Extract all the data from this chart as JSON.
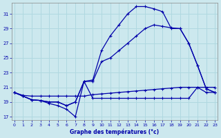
{
  "title": "Graphe des températures (°c)",
  "bg_color": "#cce8ee",
  "line_color": "#0000aa",
  "grid_color": "#b0d8e0",
  "xlim": [
    -0.3,
    23.3
  ],
  "ylim": [
    16.5,
    32.5
  ],
  "yticks": [
    17,
    19,
    21,
    23,
    25,
    27,
    29,
    31
  ],
  "xticks": [
    0,
    1,
    2,
    3,
    4,
    5,
    6,
    7,
    8,
    9,
    10,
    11,
    12,
    13,
    14,
    15,
    16,
    17,
    18,
    19,
    20,
    21,
    22,
    23
  ],
  "curve_flat": {
    "x": [
      0,
      1,
      2,
      3,
      4,
      5,
      6,
      7,
      8,
      9,
      10,
      11,
      12,
      13,
      14,
      15,
      16,
      17,
      18,
      19,
      20,
      21,
      22,
      23
    ],
    "y": [
      20.3,
      19.9,
      19.8,
      19.8,
      19.8,
      19.8,
      19.8,
      19.8,
      19.8,
      20.0,
      20.1,
      20.2,
      20.3,
      20.4,
      20.5,
      20.6,
      20.7,
      20.8,
      20.9,
      21.0,
      21.0,
      21.0,
      21.0,
      21.0
    ]
  },
  "curve_zigzag": {
    "x": [
      0,
      1,
      2,
      3,
      4,
      5,
      6,
      7,
      8,
      9,
      10,
      11,
      12,
      13,
      14,
      15,
      16,
      17,
      18,
      19,
      20,
      21,
      22,
      23
    ],
    "y": [
      20.3,
      19.8,
      19.3,
      19.2,
      18.8,
      18.5,
      18.0,
      17.0,
      21.8,
      19.5,
      19.5,
      19.5,
      19.5,
      19.5,
      19.5,
      19.5,
      19.5,
      19.5,
      19.5,
      19.5,
      19.5,
      21.0,
      20.3,
      20.3
    ]
  },
  "curve_mid": {
    "x": [
      0,
      1,
      2,
      3,
      4,
      5,
      6,
      7,
      8,
      9,
      10,
      11,
      12,
      13,
      14,
      15,
      16,
      17,
      18,
      19,
      20,
      21,
      22,
      23
    ],
    "y": [
      20.3,
      19.8,
      19.3,
      19.2,
      19.0,
      19.0,
      18.5,
      19.0,
      21.8,
      21.8,
      24.5,
      25.0,
      26.0,
      27.0,
      28.0,
      29.0,
      29.5,
      29.3,
      29.1,
      29.0,
      27.0,
      24.0,
      20.8,
      20.3
    ]
  },
  "curve_high": {
    "x": [
      0,
      1,
      2,
      3,
      4,
      5,
      6,
      7,
      8,
      9,
      10,
      11,
      12,
      13,
      14,
      15,
      16,
      17,
      18,
      19,
      20,
      21,
      22,
      23
    ],
    "y": [
      20.3,
      19.8,
      19.3,
      19.2,
      19.0,
      19.0,
      18.5,
      19.0,
      21.8,
      22.0,
      26.0,
      28.0,
      29.5,
      31.0,
      32.0,
      32.0,
      31.7,
      31.3,
      29.0,
      29.0,
      27.0,
      24.0,
      20.8,
      20.3
    ]
  }
}
